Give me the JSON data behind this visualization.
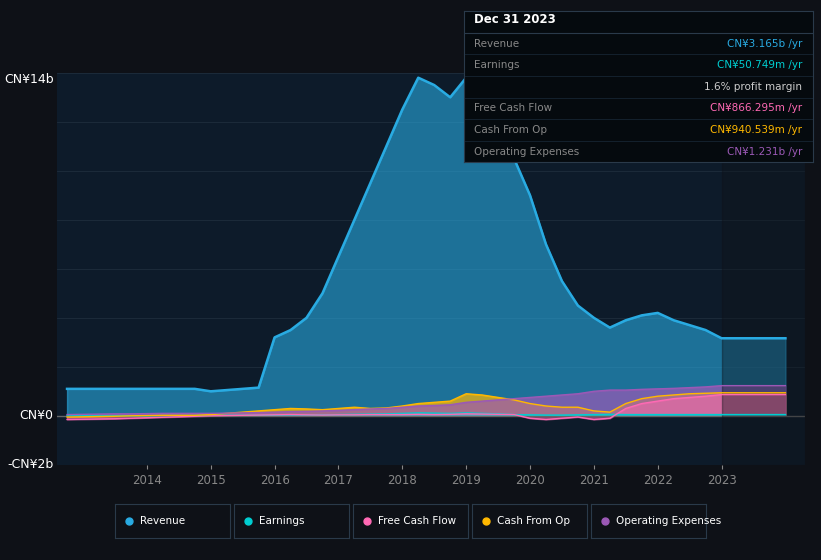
{
  "background_color": "#0e1117",
  "plot_bg_color": "#0d1b2a",
  "ylabel_top": "CN¥14b",
  "ylabel_zero": "CN¥0",
  "ylabel_neg": "-CN¥2b",
  "ylim_min": -2000000000,
  "ylim_max": 14000000000,
  "xlim_min": 2012.6,
  "xlim_max": 2024.3,
  "xticks": [
    2014,
    2015,
    2016,
    2017,
    2018,
    2019,
    2020,
    2021,
    2022,
    2023
  ],
  "colors": {
    "revenue": "#29ABE2",
    "earnings": "#00CED1",
    "free_cash_flow": "#FF69B4",
    "cash_from_op": "#FFB800",
    "operating_expenses": "#9B59B6"
  },
  "info_box": {
    "title": "Dec 31 2023",
    "rows": [
      {
        "label": "Revenue",
        "value": "CN¥3.165b /yr",
        "color": "#29ABE2"
      },
      {
        "label": "Earnings",
        "value": "CN¥50.749m /yr",
        "color": "#00CED1"
      },
      {
        "label": "",
        "value": "1.6% profit margin",
        "color": "#cccccc",
        "bold_part": "1.6%"
      },
      {
        "label": "Free Cash Flow",
        "value": "CN¥866.295m /yr",
        "color": "#FF69B4"
      },
      {
        "label": "Cash From Op",
        "value": "CN¥940.539m /yr",
        "color": "#FFB800"
      },
      {
        "label": "Operating Expenses",
        "value": "CN¥1.231b /yr",
        "color": "#9B59B6"
      }
    ]
  },
  "years": [
    2012.75,
    2013.0,
    2013.25,
    2013.5,
    2013.75,
    2014.0,
    2014.25,
    2014.5,
    2014.75,
    2015.0,
    2015.25,
    2015.5,
    2015.75,
    2016.0,
    2016.25,
    2016.5,
    2016.75,
    2017.0,
    2017.25,
    2017.5,
    2017.75,
    2018.0,
    2018.25,
    2018.5,
    2018.75,
    2019.0,
    2019.25,
    2019.5,
    2019.75,
    2020.0,
    2020.25,
    2020.5,
    2020.75,
    2021.0,
    2021.25,
    2021.5,
    2021.75,
    2022.0,
    2022.25,
    2022.5,
    2022.75,
    2023.0,
    2023.5,
    2024.0
  ],
  "revenue": [
    1100000000.0,
    1100000000.0,
    1100000000.0,
    1100000000.0,
    1100000000.0,
    1100000000.0,
    1100000000.0,
    1100000000.0,
    1100000000.0,
    1000000000.0,
    1050000000.0,
    1100000000.0,
    1150000000.0,
    3200000000.0,
    3500000000.0,
    4000000000.0,
    5000000000.0,
    6500000000.0,
    8000000000.0,
    9500000000.0,
    11000000000.0,
    12500000000.0,
    13800000000.0,
    13500000000.0,
    13000000000.0,
    13800000000.0,
    13200000000.0,
    12000000000.0,
    10500000000.0,
    9000000000.0,
    7000000000.0,
    5500000000.0,
    4500000000.0,
    4000000000.0,
    3600000000.0,
    3900000000.0,
    4100000000.0,
    4200000000.0,
    3900000000.0,
    3700000000.0,
    3500000000.0,
    3165000000.0,
    3165000000.0,
    3165000000.0
  ],
  "earnings": [
    0.0,
    0.0,
    0.0,
    0.0,
    0.0,
    0.0,
    10000000.0,
    10000000.0,
    10000000.0,
    20000000.0,
    20000000.0,
    20000000.0,
    20000000.0,
    30000000.0,
    40000000.0,
    40000000.0,
    40000000.0,
    50000000.0,
    60000000.0,
    70000000.0,
    80000000.0,
    100000000.0,
    120000000.0,
    110000000.0,
    100000000.0,
    120000000.0,
    100000000.0,
    80000000.0,
    50000000.0,
    40000000.0,
    30000000.0,
    30000000.0,
    40000000.0,
    50000000.0,
    60000000.0,
    50000000.0,
    50000000.0,
    50000000.0,
    50000000.0,
    50000000.0,
    50000000.0,
    50000000.0,
    50000000.0,
    50000000.0
  ],
  "free_cash_flow": [
    -150000000.0,
    -140000000.0,
    -130000000.0,
    -120000000.0,
    -100000000.0,
    -80000000.0,
    -60000000.0,
    -40000000.0,
    -20000000.0,
    0.0,
    10000000.0,
    20000000.0,
    30000000.0,
    40000000.0,
    50000000.0,
    40000000.0,
    30000000.0,
    40000000.0,
    40000000.0,
    50000000.0,
    50000000.0,
    50000000.0,
    60000000.0,
    50000000.0,
    60000000.0,
    80000000.0,
    70000000.0,
    60000000.0,
    50000000.0,
    -100000000.0,
    -150000000.0,
    -100000000.0,
    -50000000.0,
    -150000000.0,
    -100000000.0,
    300000000.0,
    500000000.0,
    600000000.0,
    700000000.0,
    750000000.0,
    800000000.0,
    866000000.0,
    866000000.0,
    866000000.0
  ],
  "cash_from_op": [
    -50000000.0,
    -40000000.0,
    -30000000.0,
    -20000000.0,
    0.0,
    10000000.0,
    20000000.0,
    20000000.0,
    20000000.0,
    50000000.0,
    100000000.0,
    150000000.0,
    200000000.0,
    250000000.0,
    300000000.0,
    280000000.0,
    250000000.0,
    300000000.0,
    350000000.0,
    300000000.0,
    320000000.0,
    400000000.0,
    500000000.0,
    550000000.0,
    600000000.0,
    900000000.0,
    850000000.0,
    750000000.0,
    650000000.0,
    500000000.0,
    400000000.0,
    350000000.0,
    350000000.0,
    200000000.0,
    150000000.0,
    500000000.0,
    700000000.0,
    800000000.0,
    850000000.0,
    900000000.0,
    920000000.0,
    940500000.0,
    940500000.0,
    940500000.0
  ],
  "operating_expenses": [
    50000000.0,
    60000000.0,
    70000000.0,
    80000000.0,
    80000000.0,
    90000000.0,
    100000000.0,
    100000000.0,
    100000000.0,
    100000000.0,
    110000000.0,
    120000000.0,
    130000000.0,
    150000000.0,
    170000000.0,
    180000000.0,
    200000000.0,
    220000000.0,
    250000000.0,
    280000000.0,
    300000000.0,
    350000000.0,
    400000000.0,
    420000000.0,
    450000000.0,
    550000000.0,
    600000000.0,
    650000000.0,
    700000000.0,
    750000000.0,
    800000000.0,
    850000000.0,
    900000000.0,
    1000000000.0,
    1050000000.0,
    1050000000.0,
    1080000000.0,
    1100000000.0,
    1120000000.0,
    1150000000.0,
    1180000000.0,
    1231000000.0,
    1231000000.0,
    1231000000.0
  ],
  "legend": [
    {
      "label": "Revenue",
      "color": "#29ABE2"
    },
    {
      "label": "Earnings",
      "color": "#00CED1"
    },
    {
      "label": "Free Cash Flow",
      "color": "#FF69B4"
    },
    {
      "label": "Cash From Op",
      "color": "#FFB800"
    },
    {
      "label": "Operating Expenses",
      "color": "#9B59B6"
    }
  ]
}
